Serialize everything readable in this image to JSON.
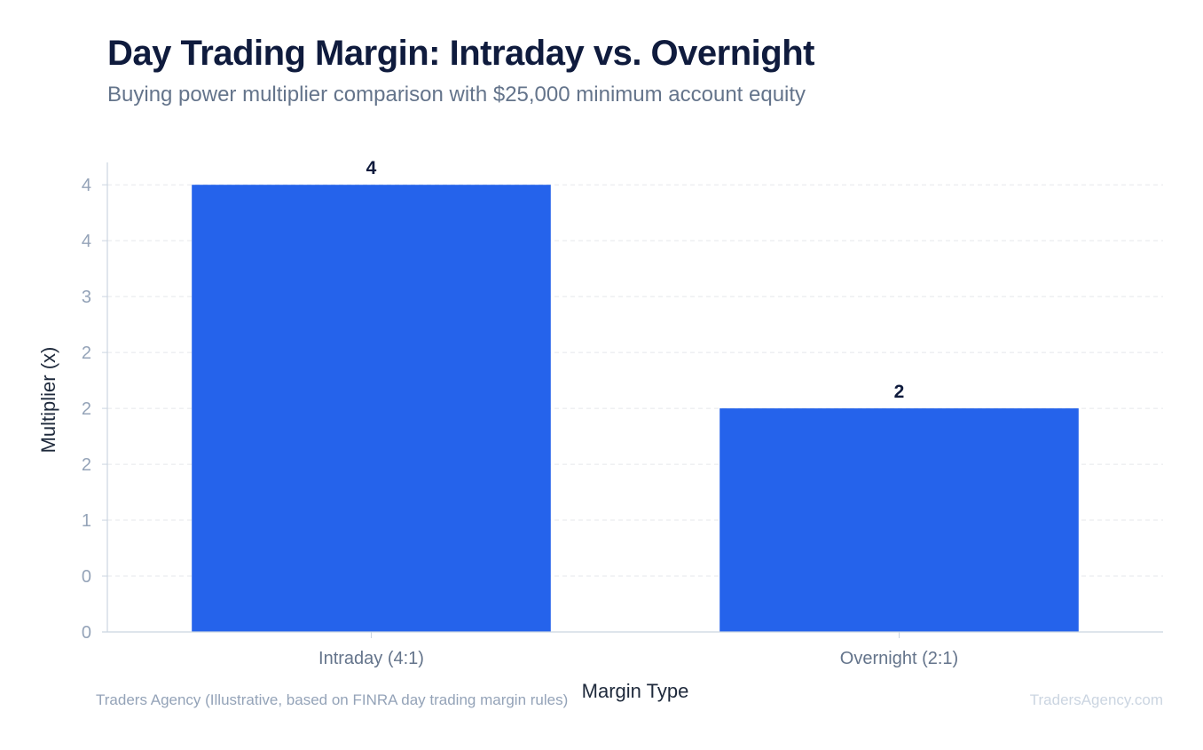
{
  "chart_data": {
    "type": "bar",
    "title": "Day Trading Margin: Intraday vs. Overnight",
    "subtitle": "Buying power multiplier comparison with $25,000 minimum account equity",
    "xlabel": "Margin Type",
    "ylabel": "Multiplier (x)",
    "categories": [
      "Intraday (4:1)",
      "Overnight (2:1)"
    ],
    "values": [
      4,
      2
    ],
    "data_labels": [
      "4",
      "2"
    ],
    "ylim": [
      0,
      4.2
    ],
    "y_ticks": [
      0,
      0.5,
      1,
      1.5,
      2,
      2.5,
      3,
      3.5,
      4
    ],
    "y_tick_labels": [
      "0",
      "0",
      "1",
      "2",
      "2",
      "2",
      "3",
      "4",
      "4"
    ],
    "grid": true,
    "bar_color": "#2563eb",
    "source": "Traders Agency (Illustrative, based on FINRA day trading margin rules)",
    "watermark": "TradersAgency.com"
  }
}
